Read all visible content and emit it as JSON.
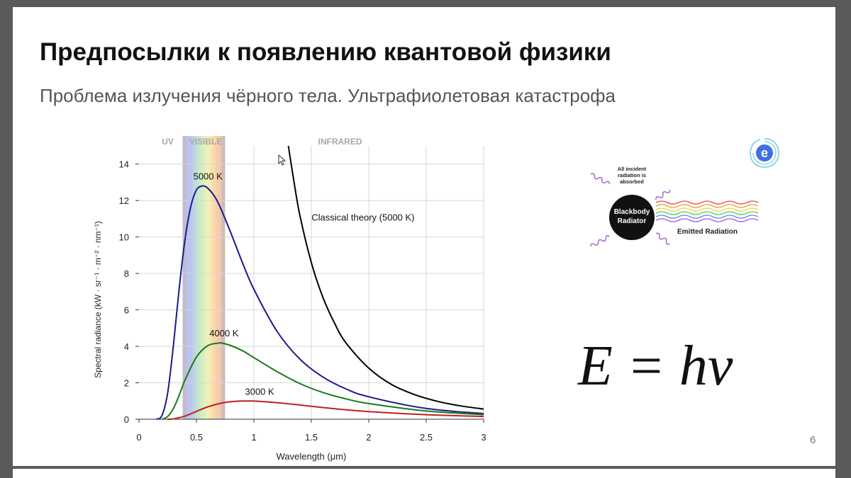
{
  "slide": {
    "title": "Предпосылки к появлению квантовой физики",
    "subtitle": "Проблема излучения чёрного тела. Ультрафиолетовая катастрофа",
    "page_number": "6",
    "formula": "E = hν",
    "logo_icon": "e-swirl-logo-icon"
  },
  "diagram": {
    "incident_label": "All incident radiation is absorbed",
    "body_label_line1": "Blackbody",
    "body_label_line2": "Radiator",
    "emitted_label": "Emitted Radiation",
    "emitted_colors": [
      "#e84a4a",
      "#f0a030",
      "#e8d84a",
      "#5ac85a",
      "#5a8ae8",
      "#a05ae8"
    ]
  },
  "chart_data": {
    "type": "line",
    "xlabel": "Wavelength (μm)",
    "ylabel": "Spectral radiance (kW · sr⁻¹ · m⁻² · nm⁻¹)",
    "xlim": [
      0,
      3
    ],
    "ylim": [
      0,
      15
    ],
    "xticks": [
      0,
      0.5,
      1,
      1.5,
      2,
      2.5,
      3
    ],
    "xtick_labels": [
      "0",
      "0.5",
      "1",
      "1.5",
      "2",
      "2.5",
      "3"
    ],
    "yticks": [
      0,
      2,
      4,
      6,
      8,
      10,
      12,
      14
    ],
    "ytick_labels": [
      "0",
      "2",
      "4",
      "6",
      "8",
      "10",
      "12",
      "14"
    ],
    "grid": true,
    "regions": [
      {
        "label": "UV",
        "x": 0.25
      },
      {
        "label": "VISIBLE",
        "x": 0.58
      },
      {
        "label": "INFRARED",
        "x": 1.75
      }
    ],
    "visible_band": [
      0.38,
      0.75
    ],
    "series": [
      {
        "name": "5000 K",
        "color": "#1a1a8c",
        "x": [
          0.15,
          0.2,
          0.25,
          0.3,
          0.35,
          0.4,
          0.45,
          0.5,
          0.55,
          0.58,
          0.6,
          0.65,
          0.7,
          0.8,
          0.9,
          1.0,
          1.2,
          1.4,
          1.6,
          1.8,
          2.0,
          2.5,
          3.0
        ],
        "values": [
          0.0,
          0.21,
          1.46,
          4.08,
          7.18,
          9.84,
          11.65,
          12.58,
          12.8,
          12.76,
          12.67,
          12.3,
          11.73,
          10.22,
          8.6,
          7.13,
          4.84,
          3.3,
          2.32,
          1.67,
          1.23,
          0.59,
          0.31
        ]
      },
      {
        "name": "4000 K",
        "color": "#1a7a1a",
        "x": [
          0.2,
          0.25,
          0.3,
          0.35,
          0.4,
          0.5,
          0.6,
          0.7,
          0.72,
          0.8,
          0.9,
          1.0,
          1.2,
          1.4,
          1.6,
          1.8,
          2.0,
          2.5,
          3.0
        ],
        "values": [
          0.0,
          0.15,
          0.59,
          1.32,
          2.14,
          3.41,
          4.04,
          4.18,
          4.18,
          4.04,
          3.76,
          3.38,
          2.62,
          1.96,
          1.47,
          1.12,
          0.86,
          0.45,
          0.25
        ]
      },
      {
        "name": "3000 K",
        "color": "#c02020",
        "x": [
          0.25,
          0.3,
          0.4,
          0.5,
          0.6,
          0.7,
          0.8,
          0.9,
          0.97,
          1.0,
          1.2,
          1.4,
          1.6,
          1.8,
          2.0,
          2.5,
          3.0
        ],
        "values": [
          0.0,
          0.02,
          0.17,
          0.43,
          0.68,
          0.86,
          0.96,
          1.0,
          1.0,
          1.0,
          0.91,
          0.78,
          0.64,
          0.52,
          0.42,
          0.25,
          0.15
        ]
      },
      {
        "name": "Classical theory (5000 K)",
        "color": "#000000",
        "x": [
          1.3,
          1.35,
          1.4,
          1.5,
          1.6,
          1.7,
          1.8,
          2.0,
          2.2,
          2.4,
          2.6,
          2.8,
          3.0
        ],
        "values": [
          15.0,
          13.0,
          11.2,
          8.6,
          6.7,
          5.3,
          4.2,
          2.8,
          1.9,
          1.35,
          0.98,
          0.73,
          0.56
        ]
      }
    ],
    "labels": [
      {
        "text": "5000 K",
        "x": 0.6,
        "y": 13.15
      },
      {
        "text": "4000 K",
        "x": 0.74,
        "y": 4.55
      },
      {
        "text": "3000 K",
        "x": 1.05,
        "y": 1.35
      },
      {
        "text": "Classical theory (5000 K)",
        "x": 1.95,
        "y": 10.9
      }
    ]
  }
}
